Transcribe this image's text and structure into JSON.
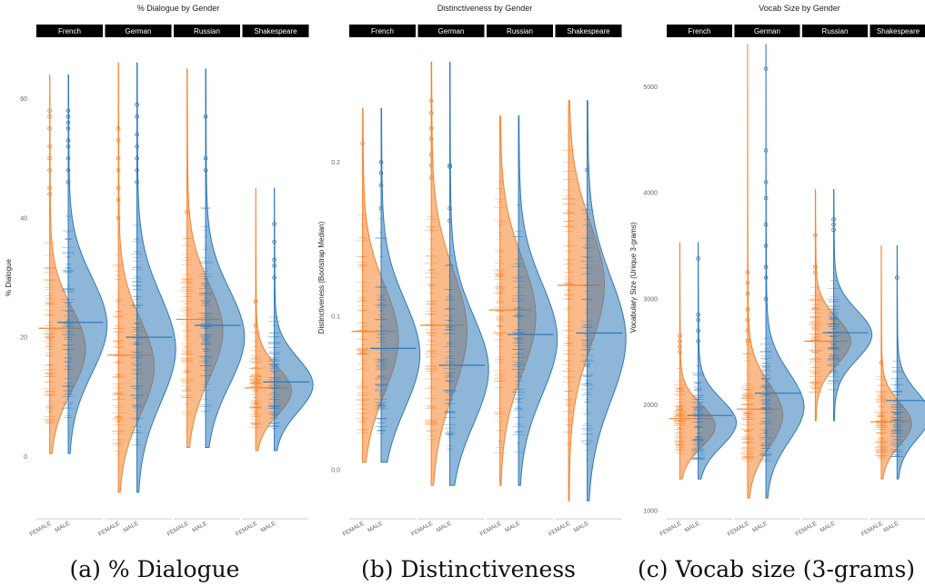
{
  "colors": {
    "female": "#f5822a",
    "male": "#2f7ab9",
    "strip": "#000000"
  },
  "captions": [
    {
      "label": "(a) % Dialogue"
    },
    {
      "label": "(b) Distinctiveness"
    },
    {
      "label": "(c) Vocab size (3-grams)"
    }
  ],
  "chart_data": [
    {
      "type": "violin",
      "title": "% Dialogue by Gender",
      "ylabel": "% Dialogue",
      "ylim": [
        -10,
        70
      ],
      "yticks": [
        0,
        20,
        40,
        60
      ],
      "x_categories": [
        "FEMALE",
        "MALE"
      ],
      "panels": [
        {
          "name": "French",
          "female": {
            "median": 21.5,
            "min": 0.5,
            "max": 64,
            "peak": 18,
            "spread": 7,
            "outliers": [
              44,
              45,
              48,
              50,
              52,
              55,
              57,
              58
            ]
          },
          "male": {
            "median": 22.5,
            "min": 0.5,
            "max": 64,
            "peak": 22,
            "spread": 8,
            "outliers": [
              46,
              48,
              50,
              52,
              53,
              55,
              56,
              57,
              58
            ]
          }
        },
        {
          "name": "German",
          "female": {
            "median": 17,
            "min": -6,
            "max": 66,
            "peak": 15,
            "spread": 8,
            "outliers": [
              40,
              43,
              45,
              48,
              50,
              53,
              55
            ]
          },
          "male": {
            "median": 20,
            "min": -6,
            "max": 66,
            "peak": 18,
            "spread": 9,
            "outliers": [
              46,
              48,
              50,
              52,
              54,
              57,
              59
            ]
          }
        },
        {
          "name": "Russian",
          "female": {
            "median": 23,
            "min": 1.5,
            "max": 65,
            "peak": 21,
            "spread": 8,
            "outliers": [
              41
            ]
          },
          "male": {
            "median": 22,
            "min": 1.5,
            "max": 65,
            "peak": 20,
            "spread": 8,
            "outliers": [
              48,
              50,
              57
            ]
          }
        },
        {
          "name": "Shakespeare",
          "female": {
            "median": 11.5,
            "min": 1,
            "max": 45,
            "peak": 11,
            "spread": 4,
            "outliers": [
              22,
              26
            ]
          },
          "male": {
            "median": 12.5,
            "min": 1,
            "max": 45,
            "peak": 12,
            "spread": 4.5,
            "outliers": [
              30,
              32,
              33,
              36,
              39
            ]
          }
        }
      ]
    },
    {
      "type": "violin",
      "title": "Distinctiveness by Gender",
      "ylabel": "Distinctiveness (Bootstrap Median)",
      "ylim": [
        -0.03,
        0.28
      ],
      "yticks": [
        0.0,
        0.1,
        0.2
      ],
      "ytick_labels": [
        "0.0",
        "0.1",
        "0.2"
      ],
      "x_categories": [
        "FEMALE",
        "MALE"
      ],
      "panels": [
        {
          "name": "French",
          "female": {
            "median": 0.09,
            "min": 0.005,
            "max": 0.235,
            "peak": 0.085,
            "spread": 0.035,
            "outliers": [
              0.212
            ]
          },
          "male": {
            "median": 0.079,
            "min": 0.005,
            "max": 0.235,
            "peak": 0.075,
            "spread": 0.035,
            "outliers": [
              0.17,
              0.185,
              0.193,
              0.2
            ]
          }
        },
        {
          "name": "German",
          "female": {
            "median": 0.094,
            "min": -0.01,
            "max": 0.265,
            "peak": 0.09,
            "spread": 0.04,
            "outliers": [
              0.19,
              0.198,
              0.205,
              0.215,
              0.222,
              0.232,
              0.24
            ]
          },
          "male": {
            "median": 0.068,
            "min": -0.01,
            "max": 0.265,
            "peak": 0.065,
            "spread": 0.035,
            "outliers": [
              0.162,
              0.17,
              0.197,
              0.198
            ]
          }
        },
        {
          "name": "Russian",
          "female": {
            "median": 0.104,
            "min": -0.01,
            "max": 0.23,
            "peak": 0.1,
            "spread": 0.038,
            "outliers": []
          },
          "male": {
            "median": 0.088,
            "min": -0.01,
            "max": 0.23,
            "peak": 0.085,
            "spread": 0.036,
            "outliers": []
          }
        },
        {
          "name": "Shakespeare",
          "female": {
            "median": 0.12,
            "min": -0.02,
            "max": 0.24,
            "peak": 0.12,
            "spread": 0.04,
            "outliers": []
          },
          "male": {
            "median": 0.089,
            "min": -0.02,
            "max": 0.24,
            "peak": 0.085,
            "spread": 0.04,
            "outliers": [
              0.195
            ]
          }
        }
      ]
    },
    {
      "type": "violin",
      "title": "Vocab Size by Gender",
      "ylabel": "Vocabulary Size (Unique 3-grams)",
      "ylim": [
        950,
        5450
      ],
      "yticks": [
        1000,
        2000,
        3000,
        4000,
        5000
      ],
      "x_categories": [
        "FEMALE",
        "MALE"
      ],
      "panels": [
        {
          "name": "French",
          "female": {
            "median": 1870,
            "min": 1300,
            "max": 3530,
            "peak": 1800,
            "spread": 200,
            "outliers": [
              2500,
              2550,
              2600,
              2650
            ]
          },
          "male": {
            "median": 1900,
            "min": 1300,
            "max": 3530,
            "peak": 1830,
            "spread": 220,
            "outliers": [
              2600,
              2700,
              2800,
              2850,
              3380
            ]
          }
        },
        {
          "name": "German",
          "female": {
            "median": 1960,
            "min": 1120,
            "max": 5400,
            "peak": 1900,
            "spread": 300,
            "outliers": [
              2600,
              2700,
              2800,
              2900,
              3050,
              3150,
              3250
            ]
          },
          "male": {
            "median": 2110,
            "min": 1120,
            "max": 5400,
            "peak": 1980,
            "spread": 320,
            "outliers": [
              3000,
              3200,
              3300,
              3500,
              3700,
              3950,
              4100,
              4400,
              5170
            ]
          }
        },
        {
          "name": "Russian",
          "female": {
            "median": 2600,
            "min": 1850,
            "max": 4030,
            "peak": 2600,
            "spread": 220,
            "outliers": [
              3250,
              3300,
              3600
            ]
          },
          "male": {
            "median": 2680,
            "min": 1850,
            "max": 4030,
            "peak": 2660,
            "spread": 230,
            "outliers": [
              3650,
              3700,
              3750
            ]
          }
        },
        {
          "name": "Shakespeare",
          "female": {
            "median": 1840,
            "min": 1300,
            "max": 3500,
            "peak": 1820,
            "spread": 200,
            "outliers": [
              2400
            ]
          },
          "male": {
            "median": 2040,
            "min": 1300,
            "max": 3500,
            "peak": 1900,
            "spread": 220,
            "outliers": [
              3200
            ]
          }
        }
      ]
    }
  ]
}
